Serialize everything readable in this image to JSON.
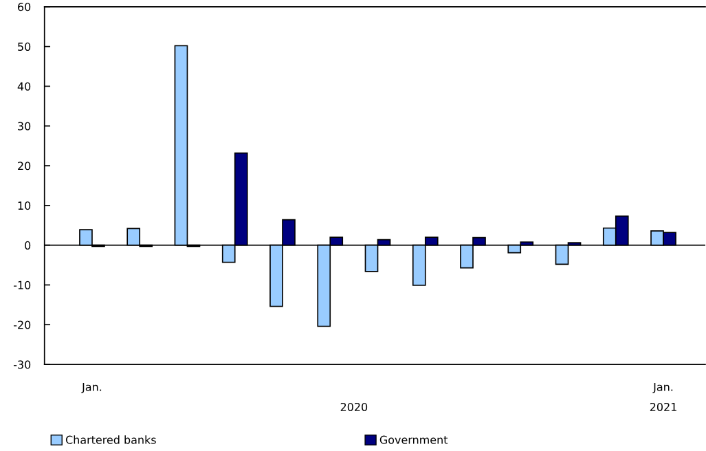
{
  "chart_data": {
    "type": "bar",
    "categories": [
      "Jan.",
      null,
      null,
      null,
      null,
      null,
      null,
      null,
      null,
      null,
      null,
      null,
      "Jan."
    ],
    "series": [
      {
        "name": "Chartered banks",
        "color": "#99ccff",
        "values": [
          3.9,
          4.2,
          50.2,
          -4.3,
          -15.4,
          -20.4,
          -6.6,
          -10.1,
          -5.7,
          -1.9,
          -4.8,
          4.3,
          3.6
        ]
      },
      {
        "name": "Government",
        "color": "#000080",
        "values": [
          -0.3,
          -0.3,
          -0.3,
          23.2,
          6.4,
          2.0,
          1.4,
          2.0,
          1.9,
          0.8,
          0.6,
          7.3,
          3.2
        ]
      }
    ],
    "ylim": [
      -30,
      60
    ],
    "yticks": [
      -30,
      -20,
      -10,
      0,
      10,
      20,
      30,
      40,
      50,
      60
    ],
    "annotations": [
      "2020",
      "2021"
    ],
    "legend": "bottom"
  }
}
